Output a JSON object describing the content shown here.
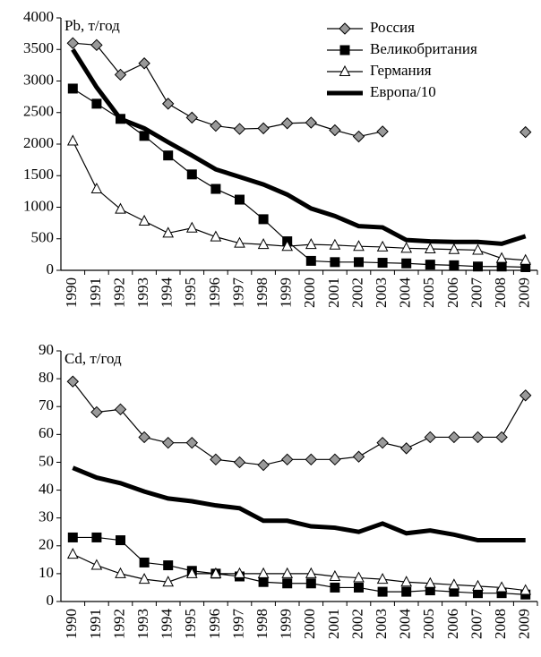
{
  "chart_data": [
    {
      "type": "line",
      "y_label": "Pb, т/год",
      "categories": [
        "1990",
        "1991",
        "1992",
        "1993",
        "1994",
        "1995",
        "1996",
        "1997",
        "1998",
        "1999",
        "2000",
        "2001",
        "2002",
        "2003",
        "2004",
        "2005",
        "2006",
        "2007",
        "2008",
        "2009"
      ],
      "ylim": [
        0,
        4000
      ],
      "yticks": [
        0,
        500,
        1000,
        1500,
        2000,
        2500,
        3000,
        3500,
        4000
      ],
      "grid": false,
      "legend": "upper right",
      "series": [
        {
          "name": "Россия",
          "color": "#999999",
          "marker": "diamond",
          "values": [
            3600,
            3570,
            3100,
            3280,
            2640,
            2420,
            2290,
            2240,
            2250,
            2330,
            2340,
            2220,
            2120,
            2200,
            null,
            null,
            null,
            null,
            null,
            2190
          ]
        },
        {
          "name": "Великобритания",
          "color": "#000000",
          "marker": "square",
          "values": [
            2880,
            2640,
            2400,
            2130,
            1820,
            1520,
            1290,
            1120,
            810,
            460,
            150,
            130,
            130,
            120,
            110,
            90,
            80,
            60,
            60,
            50
          ]
        },
        {
          "name": "Германия",
          "color": "#ffffff",
          "marker": "triangle",
          "values": [
            2050,
            1290,
            970,
            780,
            590,
            670,
            530,
            430,
            410,
            380,
            410,
            400,
            380,
            370,
            350,
            340,
            330,
            320,
            190,
            160
          ]
        },
        {
          "name": "Европа/10",
          "color": "#000000",
          "marker": "none",
          "values": [
            3500,
            2900,
            2400,
            2250,
            2030,
            1820,
            1600,
            1480,
            1360,
            1200,
            980,
            860,
            700,
            680,
            480,
            460,
            450,
            450,
            420,
            540
          ]
        }
      ]
    },
    {
      "type": "line",
      "y_label": "Cd, т/год",
      "categories": [
        "1990",
        "1991",
        "1992",
        "1993",
        "1994",
        "1995",
        "1996",
        "1997",
        "1998",
        "1999",
        "2000",
        "2001",
        "2002",
        "2003",
        "2004",
        "2005",
        "2006",
        "2007",
        "2008",
        "2009"
      ],
      "ylim": [
        0,
        90
      ],
      "yticks": [
        0,
        10,
        20,
        30,
        40,
        50,
        60,
        70,
        80,
        90
      ],
      "grid": false,
      "series": [
        {
          "color": "#999999",
          "marker": "diamond",
          "values": [
            79,
            68,
            69,
            59,
            57,
            57,
            51,
            50,
            49,
            51,
            51,
            51,
            52,
            57,
            55,
            59,
            59,
            59,
            59,
            74
          ]
        },
        {
          "color": "#000000",
          "marker": "square",
          "values": [
            23,
            23,
            22,
            14,
            13,
            11,
            10,
            9,
            7,
            6.5,
            6.5,
            5,
            5,
            3.5,
            3.5,
            4,
            3.5,
            3,
            3,
            2.5
          ]
        },
        {
          "color": "#ffffff",
          "marker": "triangle",
          "values": [
            17,
            13,
            10,
            8,
            7,
            10,
            10,
            10,
            10,
            10,
            10,
            9,
            8.5,
            8,
            7,
            6.5,
            6,
            5.5,
            5,
            4
          ]
        },
        {
          "color": "#000000",
          "marker": "none",
          "values": [
            48,
            44.5,
            42.5,
            39.5,
            37,
            36,
            34.5,
            33.5,
            29,
            29,
            27,
            26.5,
            25,
            28,
            24.5,
            25.5,
            24,
            22,
            22,
            22
          ]
        }
      ]
    }
  ]
}
